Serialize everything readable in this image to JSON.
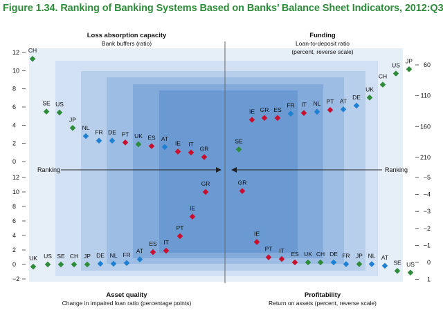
{
  "figure_title": "Figure 1.34. Ranking of Banking Systems Based on Banks’ Balance Sheet Indicators, 2012:Q3",
  "colors": {
    "title": "#2e8b3a",
    "green": "#2e8b3a",
    "blue": "#1f7fd0",
    "red": "#c8102e",
    "band_1": "#e6eef8",
    "band_2": "#d1e0f2",
    "band_3": "#b8cfeb",
    "band_4": "#9dbde4",
    "band_5": "#82aadb",
    "band_6": "#6b99d1"
  },
  "chart_data": [
    {
      "type": "scatter",
      "quadrant": "top-left",
      "title": "Loss absorption capacity",
      "subtitle": "Bank buffers (ratio)",
      "axis": "left-upper",
      "ylim": [
        0,
        12
      ],
      "ticks": [
        "12",
        "10",
        "8",
        "6",
        "4",
        "2",
        "0"
      ],
      "points": [
        {
          "label": "CH",
          "value": 11.3,
          "color": "green"
        },
        {
          "label": "SE",
          "value": 5.5,
          "color": "green"
        },
        {
          "label": "US",
          "value": 5.4,
          "color": "green"
        },
        {
          "label": "JP",
          "value": 3.7,
          "color": "green"
        },
        {
          "label": "NL",
          "value": 2.8,
          "color": "blue"
        },
        {
          "label": "FR",
          "value": 2.3,
          "color": "blue"
        },
        {
          "label": "DE",
          "value": 2.3,
          "color": "blue"
        },
        {
          "label": "PT",
          "value": 2.1,
          "color": "red"
        },
        {
          "label": "UK",
          "value": 1.9,
          "color": "green"
        },
        {
          "label": "ES",
          "value": 1.7,
          "color": "red"
        },
        {
          "label": "AT",
          "value": 1.6,
          "color": "blue"
        },
        {
          "label": "IE",
          "value": 1.1,
          "color": "red"
        },
        {
          "label": "IT",
          "value": 1.0,
          "color": "red"
        },
        {
          "label": "GR",
          "value": 0.5,
          "color": "red"
        }
      ]
    },
    {
      "type": "scatter",
      "quadrant": "top-right",
      "title": "Funding",
      "subtitle": "Loan-to-deposit ratio",
      "subtitle2": "(percent, reverse scale)",
      "axis": "right-upper",
      "ylim": [
        210,
        60
      ],
      "reverse": true,
      "ticks": [
        "60",
        "110",
        "160",
        "210"
      ],
      "points": [
        {
          "label": "SE",
          "value": 197,
          "color": "green"
        },
        {
          "label": "IE",
          "value": 149,
          "color": "red"
        },
        {
          "label": "GR",
          "value": 146,
          "color": "red"
        },
        {
          "label": "ES",
          "value": 146,
          "color": "red"
        },
        {
          "label": "FR",
          "value": 139,
          "color": "blue"
        },
        {
          "label": "IT",
          "value": 138,
          "color": "red"
        },
        {
          "label": "NL",
          "value": 136,
          "color": "blue"
        },
        {
          "label": "PT",
          "value": 133,
          "color": "red"
        },
        {
          "label": "AT",
          "value": 132,
          "color": "blue"
        },
        {
          "label": "DE",
          "value": 126,
          "color": "blue"
        },
        {
          "label": "UK",
          "value": 113,
          "color": "green"
        },
        {
          "label": "CH",
          "value": 92,
          "color": "green"
        },
        {
          "label": "US",
          "value": 74,
          "color": "green"
        },
        {
          "label": "JP",
          "value": 67,
          "color": "green"
        }
      ]
    },
    {
      "type": "scatter",
      "quadrant": "bottom-left",
      "title": "Asset quality",
      "subtitle": "Change in impaired loan ratio (percentage points)",
      "axis": "left-lower",
      "ylim": [
        -2,
        12
      ],
      "ticks": [
        "12",
        "10",
        "8",
        "6",
        "4",
        "2",
        "0",
        "−2"
      ],
      "points": [
        {
          "label": "UK",
          "value": -0.3,
          "color": "green"
        },
        {
          "label": "US",
          "value": 0.0,
          "color": "green"
        },
        {
          "label": "SE",
          "value": 0.0,
          "color": "green"
        },
        {
          "label": "CH",
          "value": 0.0,
          "color": "green"
        },
        {
          "label": "JP",
          "value": 0.0,
          "color": "green"
        },
        {
          "label": "DE",
          "value": 0.1,
          "color": "blue"
        },
        {
          "label": "NL",
          "value": 0.1,
          "color": "blue"
        },
        {
          "label": "FR",
          "value": 0.2,
          "color": "blue"
        },
        {
          "label": "AT",
          "value": 0.7,
          "color": "blue"
        },
        {
          "label": "ES",
          "value": 1.7,
          "color": "red"
        },
        {
          "label": "IT",
          "value": 1.9,
          "color": "red"
        },
        {
          "label": "PT",
          "value": 3.9,
          "color": "red"
        },
        {
          "label": "IE",
          "value": 6.6,
          "color": "red"
        },
        {
          "label": "GR",
          "value": 10.0,
          "color": "red"
        }
      ]
    },
    {
      "type": "scatter",
      "quadrant": "bottom-right",
      "title": "Profitability",
      "subtitle": "Return on assets (percent, reverse scale)",
      "axis": "right-lower",
      "ylim": [
        1,
        -5
      ],
      "reverse": true,
      "ticks": [
        "−5",
        "−4",
        "−3",
        "−2",
        "−1",
        "0",
        "1"
      ],
      "points": [
        {
          "label": "GR",
          "value": -4.2,
          "color": "red"
        },
        {
          "label": "IE",
          "value": -1.2,
          "color": "red"
        },
        {
          "label": "PT",
          "value": -0.3,
          "color": "red"
        },
        {
          "label": "IT",
          "value": -0.2,
          "color": "red"
        },
        {
          "label": "ES",
          "value": 0.0,
          "color": "red"
        },
        {
          "label": "UK",
          "value": 0.0,
          "color": "green"
        },
        {
          "label": "CH",
          "value": 0.0,
          "color": "green"
        },
        {
          "label": "DE",
          "value": 0.0,
          "color": "blue"
        },
        {
          "label": "FR",
          "value": 0.1,
          "color": "blue"
        },
        {
          "label": "JP",
          "value": 0.1,
          "color": "green"
        },
        {
          "label": "NL",
          "value": 0.1,
          "color": "blue"
        },
        {
          "label": "AT",
          "value": 0.2,
          "color": "blue"
        },
        {
          "label": "SE",
          "value": 0.5,
          "color": "green"
        },
        {
          "label": "US",
          "value": 0.6,
          "color": "green"
        }
      ]
    }
  ],
  "ranking_left": "Ranking",
  "ranking_right": "Ranking"
}
